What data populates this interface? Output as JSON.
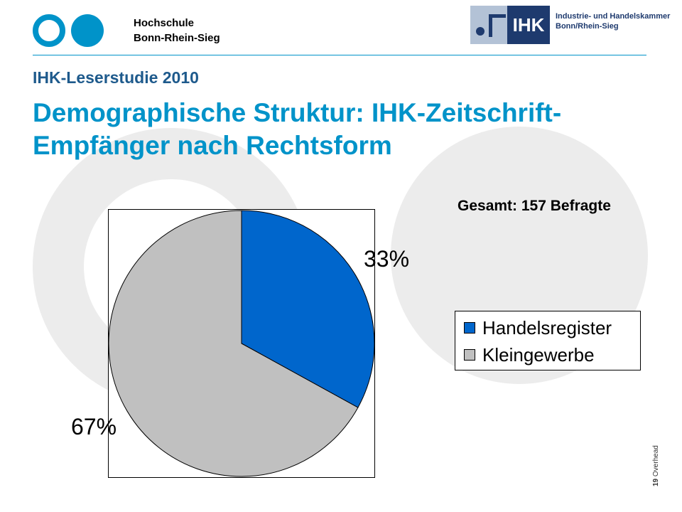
{
  "header": {
    "school_line1": "Hochschule",
    "school_line2": "Bonn-Rhein-Sieg",
    "ihk_mark": "IHK",
    "ihk_line1": "Industrie- und Handelskammer",
    "ihk_line2": "Bonn/Rhein-Sieg"
  },
  "slide": {
    "subtitle": "IHK-Leserstudie 2010",
    "title": "Demographische Struktur: IHK-Zeitschrift-Empfänger nach Rechtsform",
    "total_note": "Gesamt: 157 Befragte",
    "number": "19",
    "number_label": "Overhead"
  },
  "chart_data": {
    "type": "pie",
    "categories": [
      "Handelsregister",
      "Kleingewerbe"
    ],
    "values": [
      33,
      67
    ],
    "data_labels": [
      "33%",
      "67%"
    ],
    "colors": [
      "#0066cc",
      "#c0c0c0"
    ],
    "legend": "right"
  },
  "colors": {
    "accent": "#0093c9",
    "subtitle": "#1e5a8c",
    "ihk_blue": "#1e3a6e"
  }
}
